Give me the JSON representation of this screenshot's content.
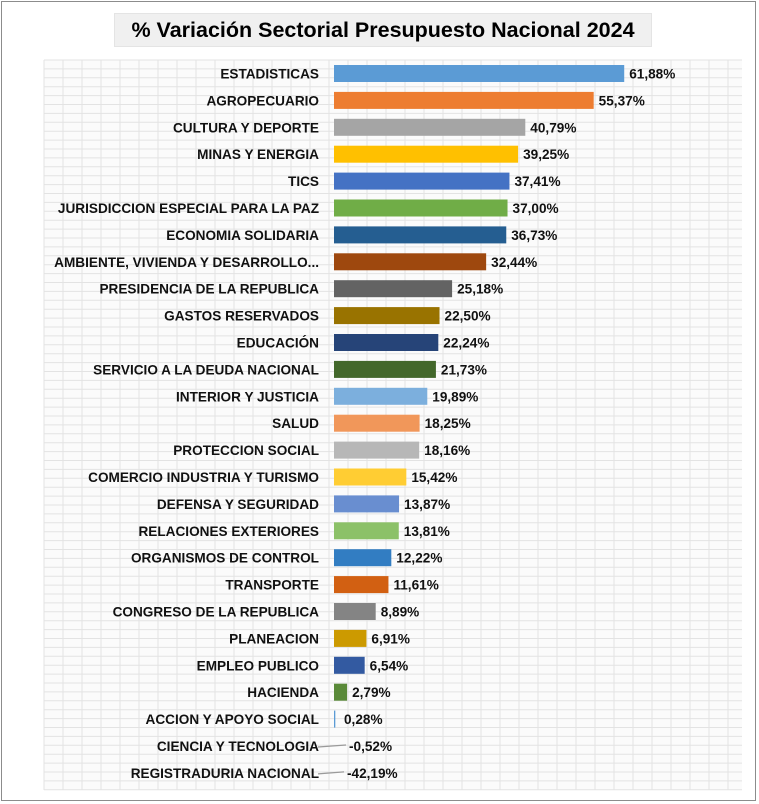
{
  "chart_data": {
    "type": "bar",
    "orientation": "horizontal",
    "title": "% Variación Sectorial Presupuesto Nacional 2024",
    "grid": true,
    "xlim": [
      -42.19,
      61.88
    ],
    "categories": [
      "ESTADISTICAS",
      "AGROPECUARIO",
      "CULTURA Y DEPORTE",
      "MINAS Y ENERGIA",
      "TICS",
      "JURISDICCION ESPECIAL PARA LA PAZ",
      "ECONOMIA SOLIDARIA",
      "AMBIENTE, VIVIENDA Y DESARROLLO...",
      "PRESIDENCIA DE LA REPUBLICA",
      "GASTOS RESERVADOS",
      "EDUCACIÓN",
      "SERVICIO A LA DEUDA NACIONAL",
      "INTERIOR Y JUSTICIA",
      "SALUD",
      "PROTECCION SOCIAL",
      "COMERCIO INDUSTRIA Y TURISMO",
      "DEFENSA Y SEGURIDAD",
      "RELACIONES EXTERIORES",
      "ORGANISMOS DE CONTROL",
      "TRANSPORTE",
      "CONGRESO DE LA REPUBLICA",
      "PLANEACION",
      "EMPLEO PUBLICO",
      "HACIENDA",
      "ACCION Y APOYO SOCIAL",
      "CIENCIA Y TECNOLOGIA",
      "REGISTRADURIA NACIONAL"
    ],
    "values": [
      61.88,
      55.37,
      40.79,
      39.25,
      37.41,
      37.0,
      36.73,
      32.44,
      25.18,
      22.5,
      22.24,
      21.73,
      19.89,
      18.25,
      18.16,
      15.42,
      13.87,
      13.81,
      12.22,
      11.61,
      8.89,
      6.91,
      6.54,
      2.79,
      0.28,
      -0.52,
      -42.19
    ],
    "value_labels": [
      "61,88%",
      "55,37%",
      "40,79%",
      "39,25%",
      "37,41%",
      "37,00%",
      "36,73%",
      "32,44%",
      "25,18%",
      "22,50%",
      "22,24%",
      "21,73%",
      "19,89%",
      "18,25%",
      "18,16%",
      "15,42%",
      "13,87%",
      "13,81%",
      "12,22%",
      "11,61%",
      "8,89%",
      "6,91%",
      "6,54%",
      "2,79%",
      "0,28%",
      "-0,52%",
      "-42,19%"
    ],
    "colors": [
      "#5b9bd5",
      "#ed7d31",
      "#a5a5a5",
      "#ffc000",
      "#4472c4",
      "#70ad47",
      "#255e91",
      "#9e480e",
      "#636363",
      "#997300",
      "#264478",
      "#43682b",
      "#7cafdd",
      "#f1975a",
      "#b7b7b7",
      "#ffcd33",
      "#698ed0",
      "#8cc168",
      "#327dc2",
      "#d26012",
      "#848484",
      "#cc9a00",
      "#335aa1",
      "#5a8a39",
      "#5b9bd5",
      "#a5a5a5",
      "#a5a5a5"
    ]
  }
}
